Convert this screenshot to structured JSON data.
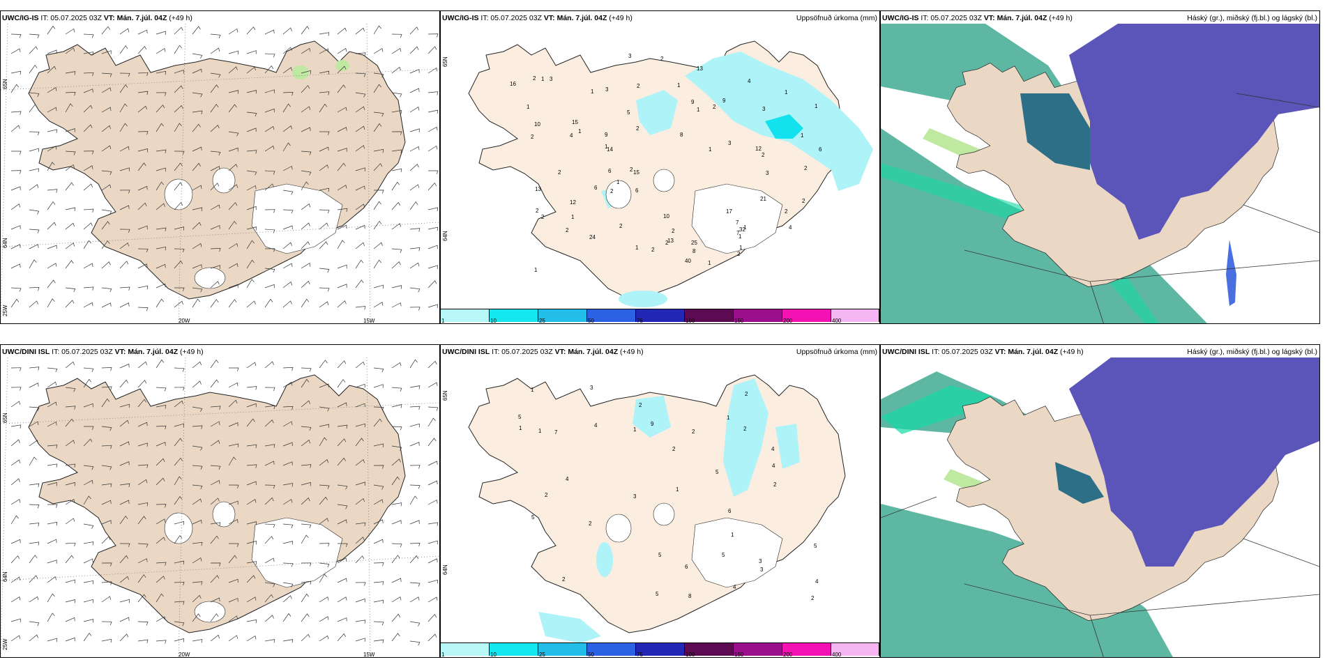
{
  "colors": {
    "land": "#ead8c4",
    "land_light": "#fbeee0",
    "glacier": "#ffffff",
    "precip": "#aef3f7",
    "precip_strong": "#14e1ee",
    "high_cloud": "#5db7a3",
    "mid_cloud": "#5b54b9",
    "mid_cloud_dark": "#2d6f86",
    "low_cloud_edge": "#16d8a5",
    "green_fringe": "#bfe8a0",
    "sea": "#ffffff"
  },
  "rows": [
    {
      "model_label": "UWC/IG-IS",
      "panels": [
        {
          "model": "UWC/IG-IS",
          "it": "IT: 05.07.2025 03Z",
          "vt_label": "VT:",
          "vt": "Mán. 7.júl. 04Z",
          "lead": "(+49 h)",
          "right_title": "",
          "lat_labels": [
            "65N",
            "64N",
            "25W"
          ],
          "lon_labels": [
            "20W",
            "15W"
          ]
        },
        {
          "model": "UWC/IG-IS",
          "it": "IT: 05.07.2025 03Z",
          "vt_label": "VT:",
          "vt": "Mán. 7.júl. 04Z",
          "lead": "(+49 h)",
          "right_title": "Uppsöfnuð úrkoma (mm)",
          "lat_labels": [
            "65N",
            "64N"
          ],
          "precip_numbers": [
            "1",
            "2",
            "8",
            "16",
            "6",
            "2",
            "13",
            "13",
            "12",
            "15",
            "12",
            "4",
            "2",
            "1",
            "4",
            "8",
            "7",
            "32",
            "2",
            "2",
            "3",
            "3",
            "4",
            "14",
            "25",
            "24",
            "13",
            "40",
            "3",
            "9",
            "2",
            "17",
            "21",
            "10",
            "7",
            "5",
            "1",
            "1",
            "15",
            "6",
            "1",
            "2",
            "6",
            "2",
            "2",
            "9",
            "10",
            "6",
            "3",
            "2",
            "2",
            "1",
            "2",
            "3",
            "1",
            "2",
            "2",
            "2",
            "2",
            "1",
            "1",
            "1",
            "1",
            "1",
            "1",
            "2",
            "1",
            "3",
            "2",
            "1",
            "2",
            "9",
            "2",
            "1",
            "1",
            "1",
            "1",
            "2"
          ]
        },
        {
          "model": "UWC/IG-IS",
          "it": "IT: 05.07.2025 03Z",
          "vt_label": "VT:",
          "vt": "Mán. 7.júl. 04Z",
          "lead": "(+49 h)",
          "right_title": "Háský (gr.), miðský (fj.bl.) og lágský (bl.)"
        }
      ]
    },
    {
      "model_label": "UWC/DINI ISL",
      "panels": [
        {
          "model": "UWC/DINI ISL",
          "it": "IT: 05.07.2025 03Z",
          "vt_label": "VT:",
          "vt": "Mán. 7.júl. 04Z",
          "lead": "(+49 h)",
          "right_title": "",
          "lat_labels": [
            "65N",
            "64N",
            "25W"
          ],
          "lon_labels": [
            "20W",
            "15W"
          ]
        },
        {
          "model": "UWC/DINI ISL",
          "it": "IT: 05.07.2025 03Z",
          "vt_label": "VT:",
          "vt": "Mán. 7.júl. 04Z",
          "lead": "(+49 h)",
          "right_title": "Uppsöfnuð úrkoma (mm)",
          "lat_labels": [
            "65N",
            "64N"
          ],
          "precip_numbers": [
            "2",
            "3",
            "5",
            "4",
            "5",
            "9",
            "8",
            "1",
            "4",
            "5",
            "3",
            "2",
            "6",
            "1",
            "4",
            "2",
            "5",
            "5",
            "6",
            "1",
            "1",
            "5",
            "5",
            "3",
            "4",
            "7",
            "1",
            "2",
            "1",
            "2",
            "2",
            "2",
            "2",
            "2",
            "2",
            "1",
            "3",
            "4",
            "4"
          ]
        },
        {
          "model": "UWC/DINI ISL",
          "it": "IT: 05.07.2025 03Z",
          "vt_label": "VT:",
          "vt": "Mán. 7.júl. 04Z",
          "lead": "(+49 h)",
          "right_title": "Háský (gr.), miðský (fj.bl.) og lágský (bl.)"
        }
      ]
    }
  ],
  "colorbar": {
    "labels": [
      "1",
      "10",
      "25",
      "50",
      "75",
      "100",
      "150",
      "200",
      "400"
    ],
    "colors": [
      "#b8f7f7",
      "#14e7f0",
      "#22bde8",
      "#2b62e3",
      "#2227b5",
      "#5c0b52",
      "#9c0f8c",
      "#f412b4",
      "#f5b4f2"
    ]
  }
}
